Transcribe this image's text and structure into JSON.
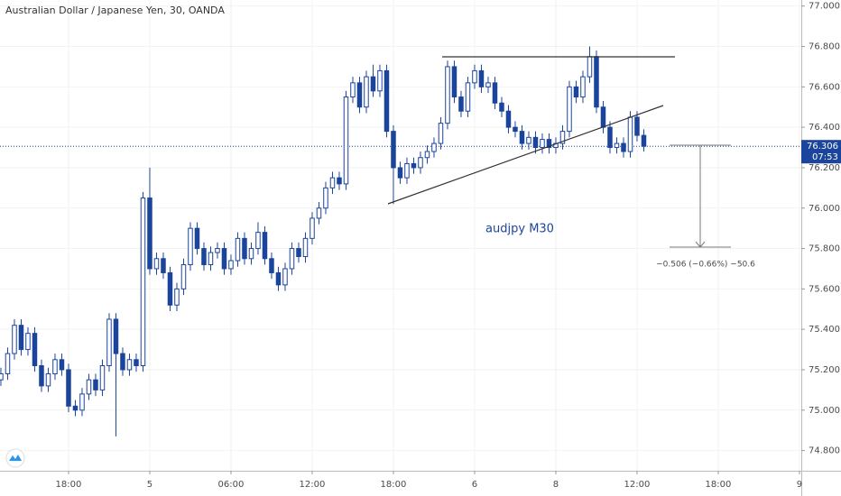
{
  "chart_data": {
    "type": "candlestick",
    "title": "Australian Dollar / Japanese Yen, 30, OANDA",
    "annotation": "audjpy M30",
    "measure_label": "−0.506 (−0.66%) −50.6",
    "countdown": "07:53",
    "up_color": "#ffffff",
    "down_color": "#1b449c",
    "edge_color": "#1b449c",
    "open": [
      75.15,
      75.18,
      75.28,
      75.42,
      75.3,
      75.38,
      75.22,
      75.12,
      75.18,
      75.25,
      75.2,
      75.02,
      75.0,
      75.08,
      75.15,
      75.1,
      75.22,
      75.45,
      75.28,
      75.2,
      75.25,
      75.22,
      76.05,
      75.7,
      75.75,
      75.68,
      75.52,
      75.6,
      75.72,
      75.9,
      75.8,
      75.72,
      75.78,
      75.8,
      75.7,
      75.74,
      75.85,
      75.75,
      75.8,
      75.88,
      75.75,
      75.68,
      75.62,
      75.7,
      75.8,
      75.76,
      75.85,
      75.95,
      76.0,
      76.1,
      76.15,
      76.12,
      76.55,
      76.62,
      76.5,
      76.65,
      76.58,
      76.68,
      76.38,
      76.2,
      76.15,
      76.22,
      76.2,
      76.25,
      76.28,
      76.32,
      76.42,
      76.7,
      76.55,
      76.48,
      76.62,
      76.68,
      76.6,
      76.62,
      76.52,
      76.48,
      76.4,
      76.38,
      76.32,
      76.35,
      76.3,
      76.34,
      76.3,
      76.32,
      76.38,
      76.6,
      76.55,
      76.65,
      76.75,
      76.5,
      76.4,
      76.3,
      76.32,
      76.28,
      76.45,
      76.36
    ],
    "high": [
      75.21,
      75.31,
      75.45,
      75.45,
      75.41,
      75.41,
      75.25,
      75.21,
      75.28,
      75.28,
      75.23,
      75.05,
      75.11,
      75.18,
      75.18,
      75.25,
      75.48,
      75.48,
      75.31,
      75.28,
      75.28,
      76.08,
      76.2,
      75.78,
      75.78,
      75.71,
      75.63,
      75.75,
      75.93,
      75.93,
      75.83,
      75.81,
      75.83,
      75.83,
      75.77,
      75.88,
      75.88,
      75.83,
      75.93,
      75.91,
      75.78,
      75.71,
      75.73,
      75.83,
      75.83,
      75.88,
      75.98,
      76.03,
      76.13,
      76.18,
      76.18,
      76.58,
      76.65,
      76.65,
      76.68,
      76.71,
      76.71,
      76.71,
      76.41,
      76.23,
      76.25,
      76.25,
      76.28,
      76.31,
      76.35,
      76.45,
      76.73,
      76.73,
      76.58,
      76.65,
      76.71,
      76.71,
      76.65,
      76.65,
      76.55,
      76.51,
      76.43,
      76.41,
      76.38,
      76.38,
      76.37,
      76.37,
      76.35,
      76.41,
      76.63,
      76.63,
      76.68,
      76.8,
      76.78,
      76.53,
      76.43,
      76.35,
      76.35,
      76.48,
      76.48,
      76.39
    ],
    "low": [
      75.12,
      75.15,
      75.25,
      75.27,
      75.27,
      75.19,
      75.09,
      75.09,
      75.15,
      75.17,
      74.99,
      74.97,
      74.97,
      75.05,
      75.07,
      75.07,
      75.19,
      74.87,
      75.17,
      75.17,
      75.19,
      75.19,
      75.67,
      75.67,
      75.65,
      75.49,
      75.49,
      75.57,
      75.69,
      75.77,
      75.69,
      75.69,
      75.75,
      75.67,
      75.67,
      75.71,
      75.72,
      75.72,
      75.77,
      75.72,
      75.65,
      75.59,
      75.59,
      75.67,
      75.73,
      75.73,
      75.82,
      75.92,
      75.97,
      76.07,
      76.09,
      76.09,
      76.52,
      76.47,
      76.47,
      76.55,
      76.55,
      76.35,
      76.02,
      76.12,
      76.12,
      76.17,
      76.17,
      76.22,
      76.25,
      76.29,
      76.39,
      76.52,
      76.45,
      76.45,
      76.59,
      76.57,
      76.57,
      76.49,
      76.45,
      76.37,
      76.35,
      76.29,
      76.29,
      76.27,
      76.27,
      76.27,
      76.27,
      76.29,
      76.35,
      76.52,
      76.52,
      76.62,
      76.47,
      76.37,
      76.27,
      76.27,
      76.25,
      76.25,
      76.33,
      76.28
    ],
    "close": [
      75.18,
      75.28,
      75.42,
      75.3,
      75.38,
      75.22,
      75.12,
      75.18,
      75.25,
      75.2,
      75.02,
      75.0,
      75.08,
      75.15,
      75.1,
      75.22,
      75.45,
      75.28,
      75.2,
      75.25,
      75.22,
      76.05,
      75.7,
      75.75,
      75.68,
      75.52,
      75.6,
      75.72,
      75.9,
      75.8,
      75.72,
      75.78,
      75.8,
      75.7,
      75.74,
      75.85,
      75.75,
      75.8,
      75.88,
      75.75,
      75.68,
      75.62,
      75.7,
      75.8,
      75.76,
      75.85,
      75.95,
      76.0,
      76.1,
      76.15,
      76.12,
      76.55,
      76.62,
      76.5,
      76.65,
      76.58,
      76.68,
      76.38,
      76.2,
      76.15,
      76.22,
      76.2,
      76.25,
      76.28,
      76.32,
      76.42,
      76.7,
      76.55,
      76.48,
      76.62,
      76.68,
      76.6,
      76.62,
      76.52,
      76.48,
      76.4,
      76.38,
      76.32,
      76.35,
      76.3,
      76.34,
      76.3,
      76.32,
      76.38,
      76.6,
      76.55,
      76.65,
      76.75,
      76.5,
      76.4,
      76.3,
      76.32,
      76.28,
      76.45,
      76.36,
      76.306
    ],
    "xlim": [
      -0.13,
      118.27
    ],
    "xticks": [
      {
        "value": 10,
        "label": "18:00"
      },
      {
        "value": 22,
        "label": "5"
      },
      {
        "value": 34,
        "label": "06:00"
      },
      {
        "value": 46,
        "label": "12:00"
      },
      {
        "value": 58,
        "label": "18:00"
      },
      {
        "value": 70,
        "label": "6"
      },
      {
        "value": 82,
        "label": "8"
      },
      {
        "value": 94,
        "label": "12:00"
      },
      {
        "value": 106,
        "label": "18:00"
      },
      {
        "value": 118,
        "label": "9"
      }
    ],
    "ylim": [
      74.7,
      77.03
    ],
    "yticks": [
      {
        "value": 74.8,
        "label": "74.800"
      },
      {
        "value": 75.0,
        "label": "75.000"
      },
      {
        "value": 75.2,
        "label": "75.200"
      },
      {
        "value": 75.4,
        "label": "75.400"
      },
      {
        "value": 75.6,
        "label": "75.600"
      },
      {
        "value": 75.8,
        "label": "75.800"
      },
      {
        "value": 76.0,
        "label": "76.000"
      },
      {
        "value": 76.2,
        "label": "76.200"
      },
      {
        "value": 76.4,
        "label": "76.400"
      },
      {
        "value": 76.6,
        "label": "76.600"
      },
      {
        "value": 76.8,
        "label": "76.800"
      },
      {
        "value": 77.0,
        "label": "77.000"
      }
    ]
  }
}
